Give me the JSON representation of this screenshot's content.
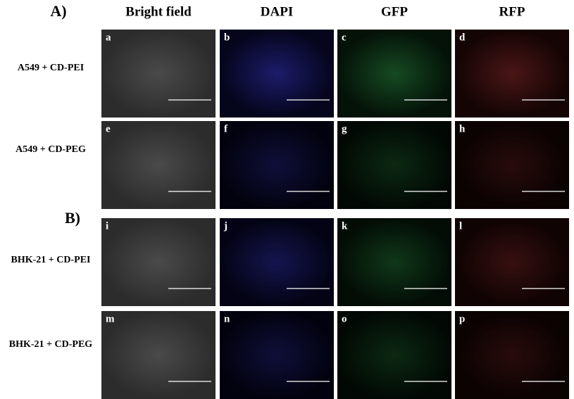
{
  "section_labels": [
    "A)",
    "B)"
  ],
  "column_headers": [
    "Bright field",
    "DAPI",
    "GFP",
    "RFP"
  ],
  "rows": [
    {
      "label": "A549 + CD-PEI",
      "panels": [
        "a",
        "b",
        "c",
        "d"
      ]
    },
    {
      "label": "A549 + CD-PEG",
      "panels": [
        "e",
        "f",
        "g",
        "h"
      ]
    },
    {
      "label": "BHK-21 + CD-PEI",
      "panels": [
        "i",
        "j",
        "k",
        "l"
      ]
    },
    {
      "label": "BHK-21 + CD-PEG",
      "panels": [
        "m",
        "n",
        "o",
        "p"
      ]
    }
  ]
}
